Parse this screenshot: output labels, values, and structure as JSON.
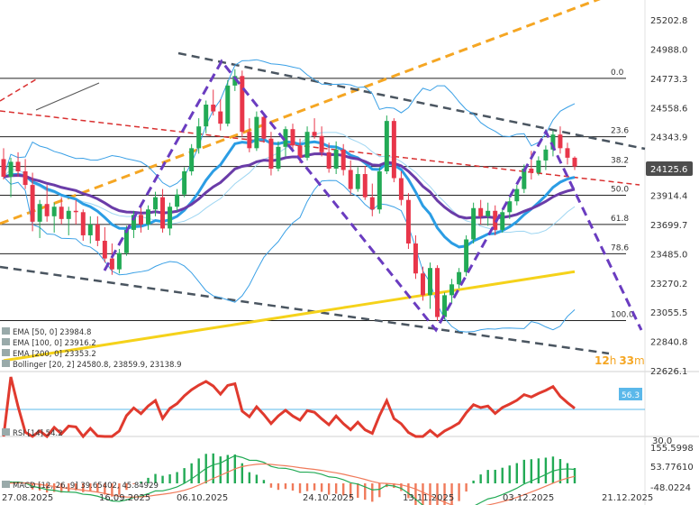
{
  "colors": {
    "bull": "#22aa55",
    "bear": "#e8364a",
    "ema50": "#2b9de4",
    "ema100": "#6a3ca8",
    "ema200": "#f5d21a",
    "bollinger": "#3aa0e6",
    "rsi": "#e03a2e",
    "macd_hist_pos": "#22aa55",
    "macd_hist_neg": "#f07a5a",
    "fib": "#333333",
    "purple_dash": "#6a3cc0",
    "orange_dash": "#f5a623",
    "dark_dash": "#4a5560",
    "red_dash": "#d93030",
    "price_tag": "#4d4d4d",
    "countdown": "#f5a623",
    "rsi_tag": "#5bb8ea"
  },
  "price_axis": {
    "labels": [
      "25202.8",
      "24988.0",
      "24773.3",
      "24558.6",
      "24343.9",
      "23914.4",
      "23699.7",
      "23485.0",
      "23270.2",
      "23055.5",
      "22840.8",
      "22626.1"
    ],
    "current_price": "24125.6"
  },
  "fib_levels": [
    {
      "label": "0.0",
      "price": 24773.3
    },
    {
      "label": "23.6",
      "price": 24343.9
    },
    {
      "label": "38.2",
      "price": 24125.6
    },
    {
      "label": "50.0",
      "price": 23914.4
    },
    {
      "label": "61.8",
      "price": 23699.7
    },
    {
      "label": "78.6",
      "price": 23485.0
    },
    {
      "label": "100.0",
      "price": 22994.0
    }
  ],
  "countdown": {
    "hours": "12",
    "h": "h",
    "minutes": "33",
    "m": "m"
  },
  "legend": [
    {
      "name": "EMA",
      "params": "[50, 0]",
      "values": "23984.8"
    },
    {
      "name": "EMA",
      "params": "[100, 0]",
      "values": "23916.2"
    },
    {
      "name": "EMA",
      "params": "[200, 0]",
      "values": "23353.2"
    },
    {
      "name": "Bollinger",
      "params": "[20, 2]",
      "values": "24580.8, 23859.9, 23138.9"
    }
  ],
  "rsi": {
    "label": "RSI [14]",
    "value": "54.2",
    "tag": "56.3",
    "axis_label": "30.0"
  },
  "macd": {
    "label": "MACD [12, 26, 9]",
    "values": "39.65402, 45.84929",
    "axis_labels": [
      "155.5998",
      "53.77610",
      "-48.0224"
    ]
  },
  "date_labels": [
    "27.08.2025",
    "16.09.2025",
    "06.10.2025",
    "24.10.2025",
    "13.11.2025",
    "03.12.2025",
    "21.12.2025"
  ],
  "chart_data": {
    "type": "candlestick",
    "instrument_panels": [
      "price",
      "RSI [14]",
      "MACD [12, 26, 9]"
    ],
    "x_labels": [
      "27.08.2025",
      "16.09.2025",
      "06.10.2025",
      "24.10.2025",
      "13.11.2025",
      "03.12.2025",
      "21.12.2025"
    ],
    "ylim": [
      22626.1,
      25202.8
    ],
    "candles_ohlc": [
      [
        24180,
        24260,
        24030,
        24050
      ],
      [
        24050,
        24190,
        23900,
        24160
      ],
      [
        24160,
        24230,
        24050,
        24090
      ],
      [
        24090,
        24180,
        23960,
        23990
      ],
      [
        23990,
        24080,
        23650,
        23720
      ],
      [
        23720,
        23880,
        23600,
        23850
      ],
      [
        23850,
        23990,
        23720,
        23760
      ],
      [
        23760,
        23860,
        23640,
        23830
      ],
      [
        23830,
        23900,
        23700,
        23740
      ],
      [
        23740,
        23830,
        23620,
        23800
      ],
      [
        23800,
        23880,
        23700,
        23790
      ],
      [
        23790,
        23810,
        23580,
        23620
      ],
      [
        23620,
        23760,
        23560,
        23700
      ],
      [
        23700,
        23760,
        23540,
        23580
      ],
      [
        23580,
        23680,
        23420,
        23450
      ],
      [
        23450,
        23560,
        23330,
        23370
      ],
      [
        23370,
        23520,
        23340,
        23490
      ],
      [
        23490,
        23690,
        23470,
        23660
      ],
      [
        23660,
        23800,
        23600,
        23770
      ],
      [
        23770,
        23860,
        23640,
        23700
      ],
      [
        23700,
        23840,
        23660,
        23810
      ],
      [
        23810,
        23940,
        23760,
        23900
      ],
      [
        23900,
        23960,
        23640,
        23670
      ],
      [
        23670,
        23860,
        23620,
        23830
      ],
      [
        23830,
        23960,
        23800,
        23920
      ],
      [
        23920,
        24120,
        23900,
        24090
      ],
      [
        24090,
        24290,
        24060,
        24260
      ],
      [
        24260,
        24480,
        24220,
        24420
      ],
      [
        24420,
        24610,
        24370,
        24580
      ],
      [
        24580,
        24690,
        24500,
        24530
      ],
      [
        24530,
        24620,
        24390,
        24440
      ],
      [
        24440,
        24760,
        24420,
        24720
      ],
      [
        24720,
        24840,
        24680,
        24790
      ],
      [
        24790,
        24830,
        24340,
        24380
      ],
      [
        24380,
        24480,
        24230,
        24260
      ],
      [
        24260,
        24530,
        24240,
        24490
      ],
      [
        24490,
        24520,
        24300,
        24330
      ],
      [
        24330,
        24380,
        24060,
        24110
      ],
      [
        24110,
        24310,
        24090,
        24270
      ],
      [
        24270,
        24420,
        24200,
        24400
      ],
      [
        24400,
        24440,
        24240,
        24280
      ],
      [
        24280,
        24330,
        24150,
        24190
      ],
      [
        24190,
        24420,
        24170,
        24380
      ],
      [
        24380,
        24480,
        24330,
        24350
      ],
      [
        24350,
        24420,
        24200,
        24230
      ],
      [
        24230,
        24300,
        24080,
        24110
      ],
      [
        24110,
        24310,
        24070,
        24250
      ],
      [
        24250,
        24290,
        24060,
        24100
      ],
      [
        24100,
        24170,
        23920,
        23960
      ],
      [
        23960,
        24120,
        23940,
        24070
      ],
      [
        24070,
        24130,
        23880,
        23900
      ],
      [
        23900,
        24000,
        23760,
        23810
      ],
      [
        23810,
        24120,
        23780,
        24090
      ],
      [
        24090,
        24500,
        24070,
        24460
      ],
      [
        24460,
        24480,
        24010,
        24040
      ],
      [
        24040,
        24090,
        23840,
        23880
      ],
      [
        23880,
        23930,
        23520,
        23560
      ],
      [
        23560,
        23620,
        23300,
        23340
      ],
      [
        23340,
        23390,
        23140,
        23180
      ],
      [
        23180,
        23420,
        23080,
        23380
      ],
      [
        23380,
        23400,
        22990,
        23020
      ],
      [
        23020,
        23200,
        23000,
        23180
      ],
      [
        23180,
        23300,
        23120,
        23260
      ],
      [
        23260,
        23380,
        23230,
        23350
      ],
      [
        23350,
        23620,
        23320,
        23590
      ],
      [
        23590,
        23860,
        23560,
        23820
      ],
      [
        23820,
        23880,
        23700,
        23760
      ],
      [
        23760,
        23860,
        23690,
        23800
      ],
      [
        23800,
        23840,
        23620,
        23660
      ],
      [
        23660,
        23820,
        23640,
        23790
      ],
      [
        23790,
        23900,
        23740,
        23870
      ],
      [
        23870,
        23990,
        23840,
        23960
      ],
      [
        23960,
        24140,
        23930,
        24110
      ],
      [
        24110,
        24240,
        24030,
        24080
      ],
      [
        24080,
        24200,
        24060,
        24170
      ],
      [
        24170,
        24280,
        24100,
        24250
      ],
      [
        24250,
        24390,
        24200,
        24360
      ],
      [
        24360,
        24420,
        24220,
        24260
      ],
      [
        24260,
        24300,
        24140,
        24190
      ],
      [
        24190,
        24200,
        24100,
        24125.6
      ]
    ],
    "ema_50_last": 23984.8,
    "ema_100_last": 23916.2,
    "ema_200_last": 23353.2,
    "bollinger_last": [
      24580.8,
      23859.9,
      23138.9
    ],
    "rsi_last": 54.2,
    "macd_last": [
      39.65402,
      45.84929
    ]
  }
}
